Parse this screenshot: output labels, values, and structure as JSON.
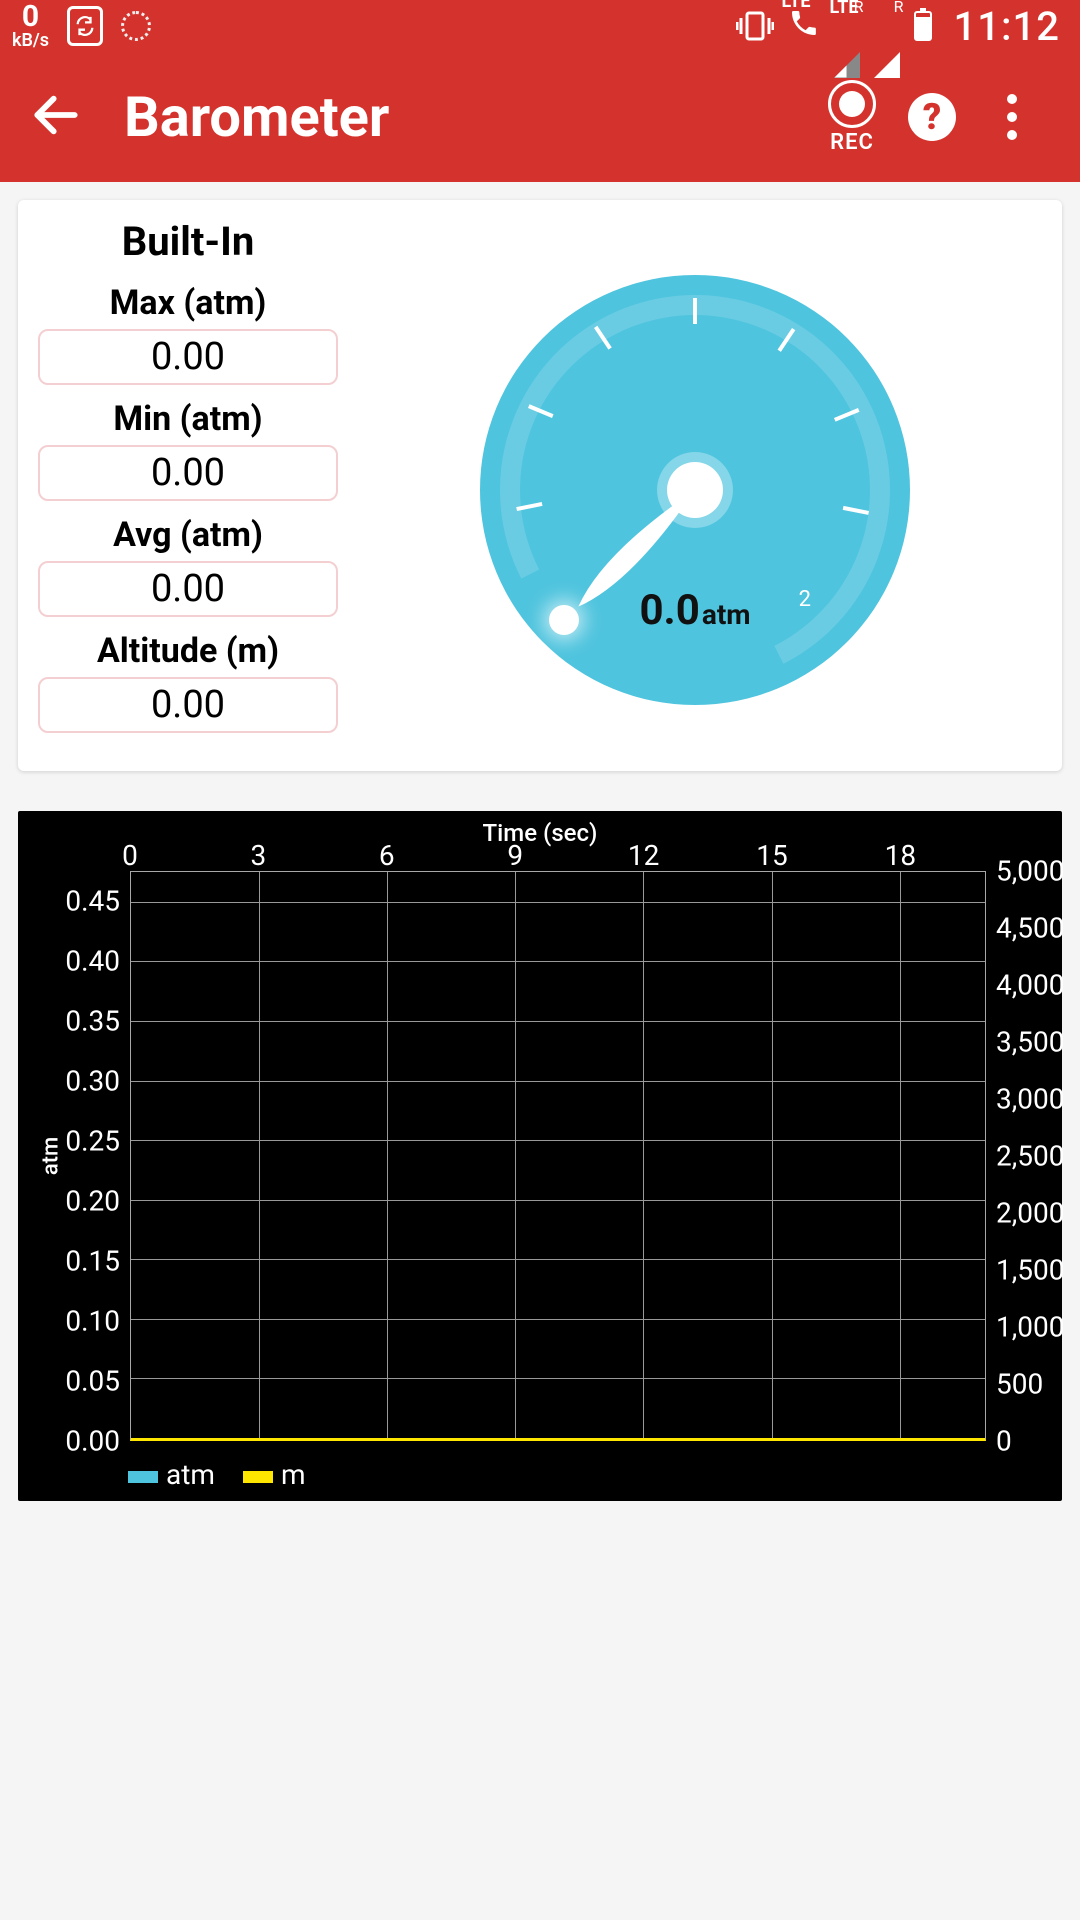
{
  "status": {
    "data_rate_value": "0",
    "data_rate_unit": "kB/s",
    "lte1": "LTE",
    "lte2": "LTE",
    "r1": "R",
    "r2": "R",
    "clock": "11:12"
  },
  "appbar": {
    "title": "Barometer",
    "rec_label": "REC",
    "help_glyph": "?"
  },
  "sensor": {
    "source_label": "Built-In",
    "max_label": "Max (atm)",
    "max_value": "0.00",
    "min_label": "Min (atm)",
    "min_value": "0.00",
    "avg_label": "Avg (atm)",
    "avg_value": "0.00",
    "alt_label": "Altitude (m)",
    "alt_value": "0.00"
  },
  "gauge": {
    "face_color": "#4fc4de",
    "reading_value": "0.0",
    "reading_unit": "atm",
    "scale_start": "0",
    "scale_end": "2",
    "needle_angle_deg": 225,
    "tick_angles": [
      225,
      258,
      291,
      324,
      357,
      30,
      63,
      96,
      135
    ],
    "tick_count": 8
  },
  "chart": {
    "title": "Time (sec)",
    "x_ticks": [
      "0",
      "3",
      "6",
      "9",
      "12",
      "15",
      "18"
    ],
    "y_left_ticks": [
      "0.00",
      "0.05",
      "0.10",
      "0.15",
      "0.20",
      "0.25",
      "0.30",
      "0.35",
      "0.40",
      "0.45"
    ],
    "y_left_title": "atm",
    "y_right_ticks": [
      "0",
      "500",
      "1,000",
      "1,500",
      "2,000",
      "2,500",
      "3,000",
      "3,500",
      "4,000",
      "4,500",
      "5,000"
    ],
    "grid_xmax": 20,
    "grid_ymax_left": 0.475,
    "legend": [
      {
        "label": "atm",
        "color": "#4fc4de"
      },
      {
        "label": "m",
        "color": "#ffe600"
      }
    ],
    "background": "#000000",
    "grid_color": "#999999",
    "baseline_color": "#ffe600"
  }
}
